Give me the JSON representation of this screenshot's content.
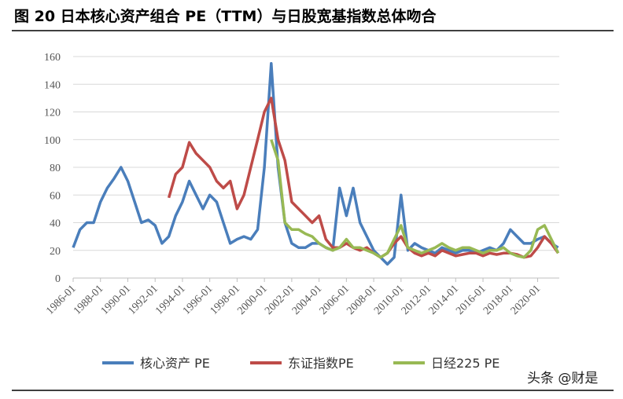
{
  "chart_data": {
    "type": "line",
    "title": "图 20 日本核心资产组合 PE（TTM）与日股宽基指数总体吻合",
    "x": [
      "1986-01",
      "1986-07",
      "1987-01",
      "1987-07",
      "1988-01",
      "1988-07",
      "1989-01",
      "1989-07",
      "1990-01",
      "1990-07",
      "1991-01",
      "1991-07",
      "1992-01",
      "1992-07",
      "1993-01",
      "1993-07",
      "1994-01",
      "1994-07",
      "1995-01",
      "1995-07",
      "1996-01",
      "1996-07",
      "1997-01",
      "1997-07",
      "1998-01",
      "1998-07",
      "1999-01",
      "1999-07",
      "2000-01",
      "2000-07",
      "2001-01",
      "2001-07",
      "2002-01",
      "2002-07",
      "2003-01",
      "2003-07",
      "2004-01",
      "2004-07",
      "2005-01",
      "2005-07",
      "2006-01",
      "2006-07",
      "2007-01",
      "2007-07",
      "2008-01",
      "2008-07",
      "2009-01",
      "2009-07",
      "2010-01",
      "2010-07",
      "2011-01",
      "2011-07",
      "2012-01",
      "2012-07",
      "2013-01",
      "2013-07",
      "2014-01",
      "2014-07",
      "2015-01",
      "2015-07",
      "2016-01",
      "2016-07",
      "2017-01",
      "2017-07",
      "2018-01",
      "2018-07",
      "2019-01",
      "2019-07",
      "2020-01",
      "2020-07",
      "2021-01",
      "2021-07"
    ],
    "series": [
      {
        "name": "核心资产 PE",
        "color": "#4a7ebb",
        "values": [
          22,
          35,
          40,
          40,
          55,
          65,
          72,
          80,
          70,
          55,
          40,
          42,
          38,
          25,
          30,
          45,
          55,
          70,
          60,
          50,
          60,
          55,
          40,
          25,
          28,
          30,
          28,
          35,
          80,
          155,
          80,
          40,
          25,
          22,
          22,
          25,
          25,
          22,
          20,
          65,
          45,
          65,
          40,
          30,
          20,
          15,
          10,
          15,
          60,
          20,
          25,
          22,
          20,
          18,
          22,
          20,
          18,
          20,
          20,
          18,
          20,
          22,
          20,
          25,
          35,
          30,
          25,
          25,
          28,
          30,
          25,
          22
        ]
      },
      {
        "name": "东证指数PE",
        "color": "#be4b48",
        "values": [
          null,
          null,
          null,
          null,
          null,
          null,
          null,
          null,
          null,
          null,
          null,
          null,
          null,
          null,
          58,
          75,
          80,
          98,
          90,
          85,
          80,
          70,
          65,
          70,
          50,
          60,
          80,
          100,
          120,
          130,
          100,
          85,
          55,
          50,
          45,
          40,
          45,
          28,
          22,
          22,
          25,
          22,
          20,
          22,
          18,
          15,
          18,
          25,
          30,
          22,
          18,
          16,
          18,
          16,
          20,
          18,
          16,
          17,
          18,
          18,
          16,
          18,
          17,
          18,
          18,
          17,
          15,
          16,
          22,
          30,
          25,
          18
        ]
      },
      {
        "name": "日经225 PE",
        "color": "#98b954",
        "values": [
          null,
          null,
          null,
          null,
          null,
          null,
          null,
          null,
          null,
          null,
          null,
          null,
          null,
          null,
          null,
          null,
          null,
          null,
          null,
          null,
          null,
          null,
          null,
          null,
          null,
          null,
          null,
          null,
          null,
          100,
          85,
          40,
          35,
          35,
          32,
          30,
          25,
          22,
          20,
          22,
          28,
          22,
          22,
          20,
          18,
          15,
          18,
          28,
          38,
          22,
          20,
          18,
          20,
          22,
          25,
          22,
          20,
          22,
          22,
          20,
          18,
          20,
          20,
          22,
          18,
          16,
          15,
          20,
          35,
          38,
          28,
          18
        ]
      }
    ],
    "xlim": [
      "1986-01",
      "2021-08"
    ],
    "xticks": [
      "1986-01",
      "1988-01",
      "1990-01",
      "1992-01",
      "1994-01",
      "1996-01",
      "1998-01",
      "2000-01",
      "2002-01",
      "2004-01",
      "2006-01",
      "2008-01",
      "2010-01",
      "2012-01",
      "2014-01",
      "2016-01",
      "2018-01",
      "2020-01"
    ],
    "ylim": [
      0,
      160
    ],
    "yticks": [
      0,
      20,
      40,
      60,
      80,
      100,
      120,
      140,
      160
    ],
    "grid": true,
    "legend": "bottom"
  },
  "watermark": "头条 @财是"
}
